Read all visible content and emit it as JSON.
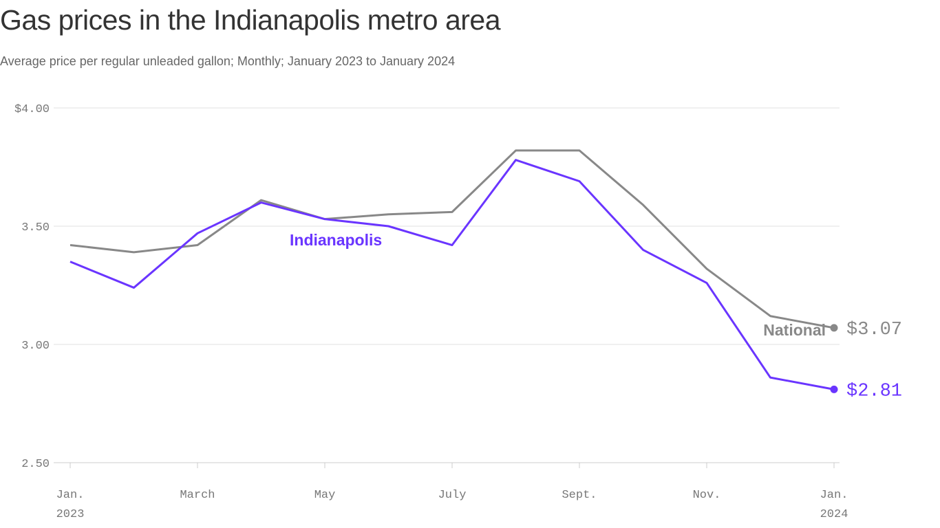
{
  "chart_data": {
    "type": "line",
    "title": "Gas prices in the Indianapolis metro area",
    "subtitle": "Average price per regular unleaded gallon; Monthly; January 2023 to January 2024",
    "xlabel": "",
    "ylabel": "",
    "ylim": [
      2.5,
      4.0
    ],
    "yticks": [
      {
        "value": 4.0,
        "label": "$4.00"
      },
      {
        "value": 3.5,
        "label": "3.50"
      },
      {
        "value": 3.0,
        "label": "3.00"
      },
      {
        "value": 2.5,
        "label": "2.50"
      }
    ],
    "x": [
      0,
      1,
      2,
      3,
      4,
      5,
      6,
      7,
      8,
      9,
      10,
      11,
      12
    ],
    "xticks": [
      {
        "index": 0,
        "label": "Jan.",
        "sub": "2023"
      },
      {
        "index": 2,
        "label": "March",
        "sub": ""
      },
      {
        "index": 4,
        "label": "May",
        "sub": ""
      },
      {
        "index": 6,
        "label": "July",
        "sub": ""
      },
      {
        "index": 8,
        "label": "Sept.",
        "sub": ""
      },
      {
        "index": 10,
        "label": "Nov.",
        "sub": ""
      },
      {
        "index": 12,
        "label": "Jan.",
        "sub": "2024"
      }
    ],
    "grid": true,
    "series": [
      {
        "name": "National",
        "color": "#888888",
        "values": [
          3.42,
          3.39,
          3.42,
          3.61,
          3.53,
          3.55,
          3.56,
          3.82,
          3.82,
          3.59,
          3.32,
          3.12,
          3.07
        ],
        "end_label": "$3.07"
      },
      {
        "name": "Indianapolis",
        "color": "#6a35ff",
        "values": [
          3.35,
          3.24,
          3.47,
          3.6,
          3.53,
          3.5,
          3.42,
          3.78,
          3.69,
          3.4,
          3.26,
          2.86,
          2.81
        ],
        "end_label": "$2.81"
      }
    ]
  }
}
